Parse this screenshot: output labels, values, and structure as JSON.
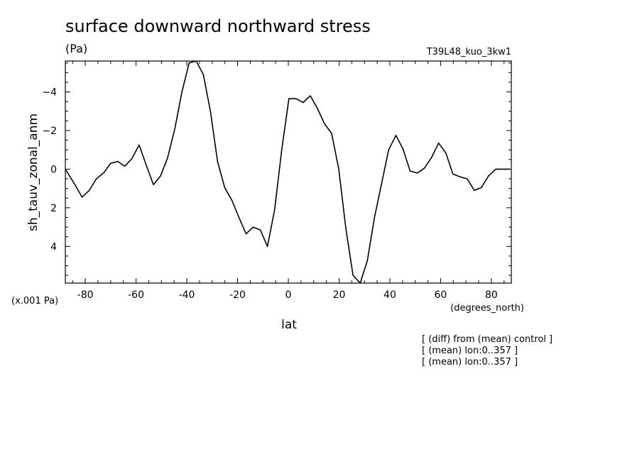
{
  "chart_data": {
    "type": "line",
    "title": "surface downward northward stress",
    "units": "(Pa)",
    "run_label": "T39L48_kuo_3kw1",
    "xlabel": "lat",
    "x_units": "(degrees_north)",
    "ylabel": "sh_tauv_zonal_anm",
    "y_scale_note": "(x.001 Pa)",
    "notes": [
      "[ (diff) from (mean) control ]",
      "[ (mean) lon:0..357 ]",
      "[ (mean) lon:0..357 ]"
    ],
    "xlim": [
      -87.86,
      87.86
    ],
    "ylim": [
      5.9,
      -5.6
    ],
    "y_reversed": true,
    "grid": false,
    "x_ticks": [
      -80,
      -60,
      -40,
      -20,
      0,
      20,
      40,
      60,
      80
    ],
    "y_ticks": [
      -4,
      -2,
      0,
      2,
      4
    ],
    "series": [
      {
        "x": [
          -87.86,
          -84.07,
          -81.26,
          -78.45,
          -75.63,
          -72.82,
          -70.0,
          -67.2,
          -64.4,
          -61.6,
          -58.8,
          -55.96,
          -53.15,
          -50.34,
          -47.53,
          -44.72,
          -41.91,
          -39.1,
          -36.3,
          -33.5,
          -30.7,
          -27.89,
          -25.08,
          -22.27,
          -19.46,
          -16.65,
          -13.84,
          -11.03,
          -8.22,
          -5.41,
          -2.6,
          0.21,
          3.02,
          5.83,
          8.64,
          11.45,
          14.26,
          17.07,
          19.88,
          22.69,
          25.5,
          28.31,
          31.12,
          33.93,
          36.74,
          39.55,
          42.36,
          45.17,
          47.98,
          50.79,
          53.6,
          56.41,
          59.22,
          62.03,
          64.84,
          67.65,
          70.46,
          73.27,
          76.08,
          78.89,
          81.7,
          84.51,
          87.32
        ],
        "y": [
          0.0,
          0.8,
          1.45,
          1.1,
          0.5,
          0.2,
          -0.3,
          -0.4,
          -0.15,
          -0.55,
          -1.25,
          -0.2,
          0.8,
          0.35,
          -0.6,
          -2.1,
          -4.0,
          -5.5,
          -5.6,
          -4.9,
          -3.0,
          -0.4,
          0.95,
          1.6,
          2.5,
          3.35,
          3.0,
          3.15,
          4.0,
          2.1,
          -1.0,
          -3.65,
          -3.65,
          -3.45,
          -3.8,
          -3.15,
          -2.35,
          -1.85,
          0.0,
          3.1,
          5.5,
          5.9,
          4.75,
          2.5,
          0.75,
          -1.0,
          -1.75,
          -1.05,
          0.1,
          0.2,
          -0.05,
          -0.6,
          -1.35,
          -0.85,
          0.25,
          0.4,
          0.5,
          1.1,
          0.95,
          0.35,
          0.0,
          0.0,
          0.0
        ]
      }
    ]
  }
}
